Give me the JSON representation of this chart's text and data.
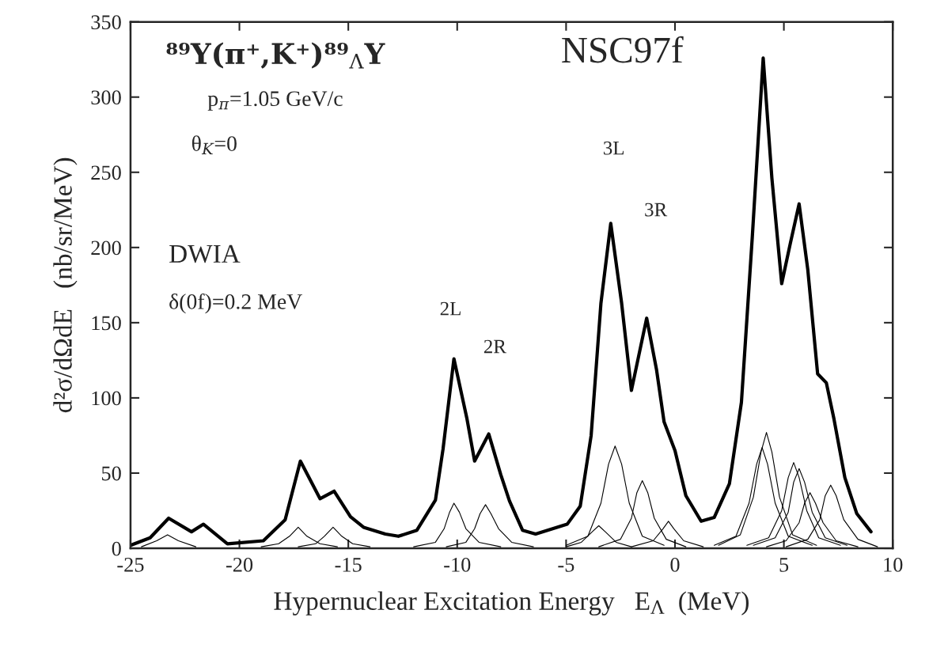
{
  "chart_data": {
    "type": "line",
    "xlabel": "Hypernuclear Excitation Energy   E$_{Λ}$  (MeV)",
    "ylabel": "d²σ/dΩdE   (nb/sr/MeV)",
    "xlim": [
      -25,
      10
    ],
    "ylim": [
      0,
      350
    ],
    "xticks": [
      -25,
      -20,
      -15,
      -10,
      -5,
      0,
      5,
      10
    ],
    "yticks": [
      0,
      50,
      100,
      150,
      200,
      250,
      300,
      350
    ],
    "grid": false,
    "legend": false,
    "marker": "none",
    "line_style": "solid",
    "annotations": [
      "⁸⁹Y(π⁺,K⁺)⁸⁹$_{Λ}$Y",
      "NSC97f",
      "p$_{π}$=1.05 GeV/c",
      "θ$_{K}$=0",
      "DWIA",
      "δ(0f)=0.2 MeV",
      "2L",
      "2R",
      "3L",
      "3R"
    ],
    "series": [
      {
        "color": "#000000",
        "x": [
          -25,
          -24.1,
          -23.25,
          -22.2,
          -21.65,
          -20.55,
          -18.9,
          -17.9,
          -17.2,
          -16.3,
          -15.65,
          -14.9,
          -14.3,
          -13.3,
          -12.7,
          -11.85,
          -11.0,
          -10.65,
          -10.15,
          -9.55,
          -9.2,
          -8.55,
          -8.0,
          -7.6,
          -7.0,
          -6.4,
          -4.95,
          -4.35,
          -3.85,
          -3.4,
          -2.95,
          -2.45,
          -2.0,
          -1.3,
          -0.85,
          -0.5,
          0.0,
          0.5,
          1.2,
          1.8,
          2.5,
          3.05,
          3.55,
          4.05,
          4.45,
          4.9,
          5.3,
          5.7,
          6.1,
          6.55,
          6.95,
          7.3,
          7.8,
          8.35,
          9.0
        ],
        "values": [
          2,
          7,
          20,
          11,
          16,
          3,
          5,
          19,
          58,
          33,
          38,
          21,
          14,
          9.5,
          8,
          12,
          32,
          66,
          126,
          86,
          58,
          76,
          49,
          31.5,
          12,
          9.5,
          16,
          28,
          75,
          163,
          216,
          163,
          105,
          153,
          119,
          84,
          65,
          35,
          18,
          20.5,
          43,
          97,
          207,
          326,
          246,
          176,
          203,
          229,
          185,
          116,
          110,
          86,
          47,
          23,
          11
        ]
      },
      {
        "color": "#000000",
        "x": [
          -12,
          -11,
          -10.6,
          -10.35,
          -10.15,
          -9.9,
          -9.6,
          -9,
          -8
        ],
        "values": [
          1,
          4,
          13,
          24,
          30,
          24,
          13,
          4,
          1
        ]
      },
      {
        "color": "#000000",
        "x": [
          -10.5,
          -9.6,
          -9.2,
          -8.95,
          -8.7,
          -8.45,
          -8.1,
          -7.5,
          -6.5
        ],
        "values": [
          1,
          4,
          13,
          23,
          29,
          23,
          13,
          4,
          1
        ]
      },
      {
        "color": "#000000",
        "x": [
          -19,
          -18.2,
          -17.7,
          -17.3,
          -16.9,
          -16.3,
          -15.5
        ],
        "values": [
          1,
          3,
          8,
          14,
          8,
          3,
          1
        ]
      },
      {
        "color": "#000000",
        "x": [
          -17.3,
          -16.5,
          -16.1,
          -15.7,
          -15.3,
          -14.8,
          -14
        ],
        "values": [
          1,
          3,
          8,
          14,
          8,
          3,
          1
        ]
      },
      {
        "color": "#000000",
        "x": [
          -5,
          -4,
          -3.4,
          -3.05,
          -2.75,
          -2.45,
          -2.1,
          -1.5,
          -0.5
        ],
        "values": [
          2,
          8,
          30,
          56,
          68,
          56,
          30,
          8,
          2
        ]
      },
      {
        "color": "#000000",
        "x": [
          -3.5,
          -2.5,
          -2,
          -1.75,
          -1.5,
          -1.25,
          -0.95,
          -0.4,
          0.5
        ],
        "values": [
          1,
          6,
          20,
          37,
          45,
          37,
          20,
          6,
          1
        ]
      },
      {
        "color": "#000000",
        "x": [
          2,
          3,
          3.6,
          3.95,
          4.2,
          4.45,
          4.8,
          5.4,
          6.5
        ],
        "values": [
          2,
          9,
          34,
          64,
          77,
          64,
          34,
          9,
          2
        ]
      },
      {
        "color": "#000000",
        "x": [
          1.8,
          2.8,
          3.4,
          3.75,
          4.0,
          4.25,
          4.6,
          5.2,
          6.3
        ],
        "values": [
          2,
          8,
          30,
          56,
          67,
          56,
          30,
          8,
          2
        ]
      },
      {
        "color": "#000000",
        "x": [
          3.3,
          4.3,
          4.9,
          5.2,
          5.45,
          5.7,
          6.05,
          6.6,
          7.6
        ],
        "values": [
          2,
          7,
          25,
          47,
          57,
          47,
          25,
          7,
          2
        ]
      },
      {
        "color": "#000000",
        "x": [
          3.6,
          4.6,
          5.2,
          5.45,
          5.7,
          5.95,
          6.3,
          6.9,
          7.9
        ],
        "values": [
          2,
          7,
          24,
          44,
          53,
          44,
          24,
          7,
          2
        ]
      },
      {
        "color": "#000000",
        "x": [
          4.2,
          5.1,
          5.7,
          5.95,
          6.2,
          6.45,
          6.8,
          7.4,
          8.4
        ],
        "values": [
          1,
          5,
          17,
          30,
          37,
          30,
          17,
          5,
          1
        ]
      },
      {
        "color": "#000000",
        "x": [
          5.1,
          6.1,
          6.65,
          6.9,
          7.15,
          7.4,
          7.75,
          8.4,
          9.3
        ],
        "values": [
          1,
          6,
          19,
          35,
          42,
          35,
          19,
          6,
          1
        ]
      },
      {
        "color": "#000000",
        "x": [
          -2,
          -1,
          -0.55,
          -0.3,
          -0.05,
          0.4,
          1.3
        ],
        "values": [
          1,
          5,
          13,
          18,
          13,
          5,
          1
        ]
      },
      {
        "color": "#000000",
        "x": [
          -5,
          -4.3,
          -3.8,
          -3.5,
          -3.2,
          -2.7,
          -2
        ],
        "values": [
          1,
          4,
          11,
          15,
          11,
          4,
          1
        ]
      },
      {
        "color": "#000000",
        "x": [
          -24.5,
          -23.8,
          -23.3,
          -22.8,
          -22
        ],
        "values": [
          1,
          5,
          9,
          5,
          1
        ]
      }
    ]
  }
}
